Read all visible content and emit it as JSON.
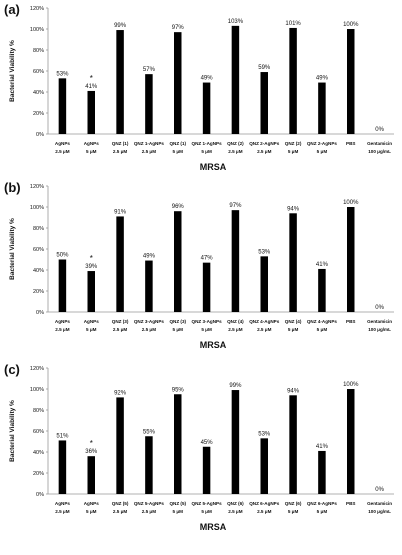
{
  "chart_data": [
    {
      "panel_label": "(a)",
      "type": "bar",
      "ylabel": "Bacterial Viability %",
      "xlabel": "MRSA",
      "ylim": [
        0,
        120
      ],
      "yticks": [
        "0%",
        "20%",
        "40%",
        "60%",
        "80%",
        "100%",
        "120%"
      ],
      "categories": [
        [
          "AgNPs",
          "2.5 μM"
        ],
        [
          "AgNPs",
          "5 μM"
        ],
        [
          "QNZ (1)",
          "2.5 μM"
        ],
        [
          "QNZ 1-AgNPs",
          "2.5 μM"
        ],
        [
          "QNZ (1)",
          "5 μM"
        ],
        [
          "QNZ 1-AgNPs",
          "5 μM"
        ],
        [
          "QNZ (2)",
          "2.5 μM"
        ],
        [
          "QNZ 2-AgNPs",
          "2.5 μM"
        ],
        [
          "QNZ (2)",
          "5 μM"
        ],
        [
          "QNZ 2-AgNPs",
          "5 μM"
        ],
        [
          "PBS",
          ""
        ],
        [
          "Gentamicin",
          "100 μg/mL"
        ]
      ],
      "values": [
        53,
        41,
        99,
        57,
        97,
        49,
        103,
        59,
        101,
        49,
        100,
        0
      ],
      "value_labels": [
        "53%",
        "41%",
        "99%",
        "57%",
        "97%",
        "49%",
        "103%",
        "59%",
        "101%",
        "49%",
        "100%",
        "0%"
      ],
      "significance_marker": "*",
      "significance_index": 1
    },
    {
      "panel_label": "(b)",
      "type": "bar",
      "ylabel": "Bacterial Viability %",
      "xlabel": "MRSA",
      "ylim": [
        0,
        120
      ],
      "yticks": [
        "0%",
        "20%",
        "40%",
        "60%",
        "80%",
        "100%",
        "120%"
      ],
      "categories": [
        [
          "AgNPs",
          "2.5 μM"
        ],
        [
          "AgNPs",
          "5 μM"
        ],
        [
          "QNZ (3)",
          "2.5 μM"
        ],
        [
          "QNZ 3-AgNPs",
          "2.5 μM"
        ],
        [
          "QNZ (3)",
          "5 μM"
        ],
        [
          "QNZ 3-AgNPs",
          "5 μM"
        ],
        [
          "QNZ (4)",
          "2.5 μM"
        ],
        [
          "QNZ 4-AgNPs",
          "2.5 μM"
        ],
        [
          "QNZ (4)",
          "5 μM"
        ],
        [
          "QNZ 4-AgNPs",
          "5 μM"
        ],
        [
          "PBS",
          ""
        ],
        [
          "Gentamicin",
          "100 μg/mL"
        ]
      ],
      "values": [
        50,
        39,
        91,
        49,
        96,
        47,
        97,
        53,
        94,
        41,
        100,
        0
      ],
      "value_labels": [
        "50%",
        "39%",
        "91%",
        "49%",
        "96%",
        "47%",
        "97%",
        "53%",
        "94%",
        "41%",
        "100%",
        "0%"
      ],
      "significance_marker": "*",
      "significance_index": 1
    },
    {
      "panel_label": "(c)",
      "type": "bar",
      "ylabel": "Bacterial Viability %",
      "xlabel": "MRSA",
      "ylim": [
        0,
        120
      ],
      "yticks": [
        "0%",
        "20%",
        "40%",
        "60%",
        "80%",
        "100%",
        "120%"
      ],
      "categories": [
        [
          "AgNPs",
          "2.5 μM"
        ],
        [
          "AgNPs",
          "5 μM"
        ],
        [
          "QNZ (5)",
          "2.5 μM"
        ],
        [
          "QNZ 5-AgNPs",
          "2.5 μM"
        ],
        [
          "QNZ (5)",
          "5 μM"
        ],
        [
          "QNZ 5-AgNPs",
          "5 μM"
        ],
        [
          "QNZ (6)",
          "2.5 μM"
        ],
        [
          "QNZ 6-AgNPs",
          "2.5 μM"
        ],
        [
          "QNZ (6)",
          "5 μM"
        ],
        [
          "QNZ 6-AgNPs",
          "5 μM"
        ],
        [
          "PBS",
          ""
        ],
        [
          "Gentamicin",
          "100 μg/mL"
        ]
      ],
      "values": [
        51,
        36,
        92,
        55,
        95,
        45,
        99,
        53,
        94,
        41,
        100,
        0
      ],
      "value_labels": [
        "51%",
        "36%",
        "92%",
        "55%",
        "95%",
        "45%",
        "99%",
        "53%",
        "94%",
        "41%",
        "100%",
        "0%"
      ],
      "significance_marker": "*",
      "significance_index": 1
    }
  ]
}
